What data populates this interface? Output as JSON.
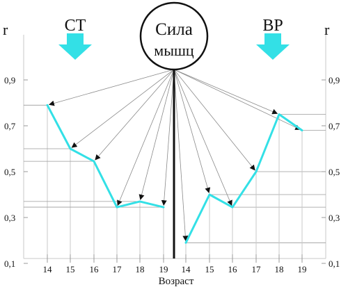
{
  "chart_data": {
    "type": "line",
    "title": "Сила мышц",
    "title_line1": "Сила",
    "title_line2": "мышц",
    "xlabel": "Возраст",
    "ylabel_left": "r",
    "ylabel_right": "r",
    "ylim": [
      0.0,
      1.0
    ],
    "y_ticks": [
      "0,1",
      "0,3",
      "0,5",
      "0,7",
      "0,9"
    ],
    "y_tick_values": [
      0.1,
      0.3,
      0.5,
      0.7,
      0.9
    ],
    "grid": "reference lines",
    "line_color": "#33e0e6",
    "arrow_color": "#33e0e6",
    "series": [
      {
        "name": "СТ",
        "categories": [
          "14",
          "15",
          "16",
          "17",
          "18",
          "19"
        ],
        "values": [
          0.79,
          0.6,
          0.545,
          0.345,
          0.37,
          0.345
        ]
      },
      {
        "name": "ВР",
        "categories": [
          "14",
          "15",
          "16",
          "17",
          "18",
          "19"
        ],
        "values": [
          0.19,
          0.4,
          0.345,
          0.5,
          0.75,
          0.68
        ]
      }
    ]
  }
}
